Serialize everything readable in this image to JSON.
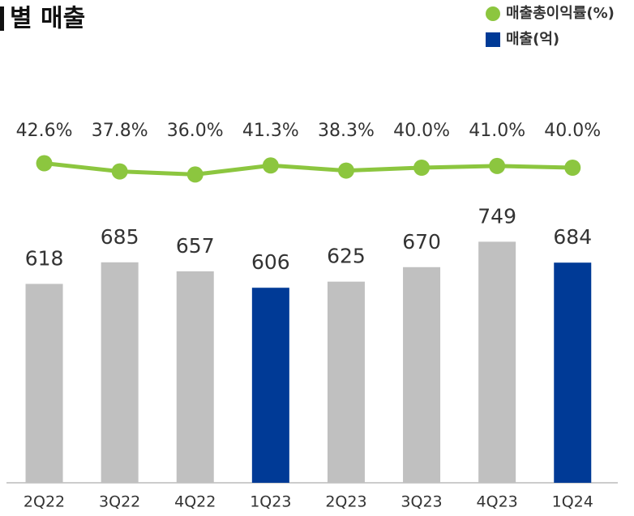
{
  "chart_data": {
    "type": "bar",
    "title": "별 매출",
    "categories": [
      "2Q22",
      "3Q22",
      "4Q22",
      "1Q23",
      "2Q23",
      "3Q23",
      "4Q23",
      "1Q24"
    ],
    "ylim": [
      0,
      1500
    ],
    "y2lim": [
      30,
      50
    ],
    "legend": "top-right",
    "series": [
      {
        "name": "매출총이익률(%)",
        "type": "line",
        "axis": "y2",
        "color": "#8cc63f",
        "values": [
          42.6,
          37.8,
          36.0,
          41.3,
          38.3,
          40.0,
          41.0,
          40.0
        ],
        "value_labels": [
          "42.6%",
          "37.8%",
          "36.0%",
          "41.3%",
          "38.3%",
          "40.0%",
          "41.0%",
          "40.0%"
        ]
      },
      {
        "name": "매출(억)",
        "type": "bar",
        "color": "#003a96",
        "colors": [
          "#c0c0c0",
          "#c0c0c0",
          "#c0c0c0",
          "#003a96",
          "#c0c0c0",
          "#c0c0c0",
          "#c0c0c0",
          "#003a96"
        ],
        "values": [
          618,
          685,
          657,
          606,
          625,
          670,
          749,
          684
        ]
      }
    ]
  }
}
